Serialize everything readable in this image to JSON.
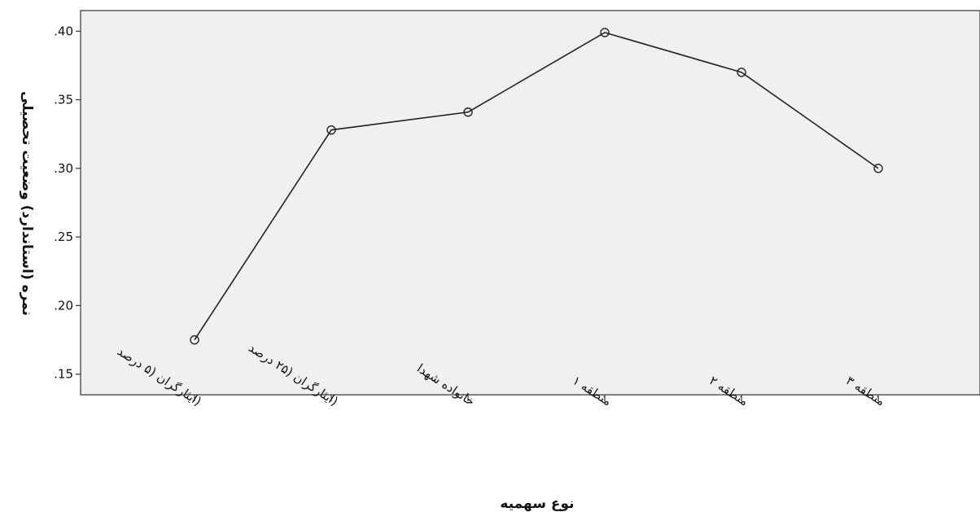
{
  "chart_data": {
    "type": "line",
    "title": "",
    "xlabel": "نوع سهمیه",
    "ylabel": "نمره (استاندارد) وضعیت تحصیلی",
    "categories": [
      "(ایثارگران (۵ درصد",
      "(ایثارگران (۲۵ درصد",
      "خانواده شهدا",
      "منطقه ۱",
      "منطقه ۲",
      "منطقه ۳"
    ],
    "series": [
      {
        "values": [
          0.175,
          0.328,
          0.341,
          0.399,
          0.37,
          0.3
        ]
      }
    ],
    "yticks": [
      ".15",
      ".20",
      ".25",
      ".30",
      ".35",
      ".40"
    ],
    "ylim": [
      0.135,
      0.415
    ],
    "grid": false,
    "legend": "none",
    "colors": {
      "plot_background": "#f0f0f0",
      "line": "#222222",
      "axis": "#333333"
    }
  }
}
